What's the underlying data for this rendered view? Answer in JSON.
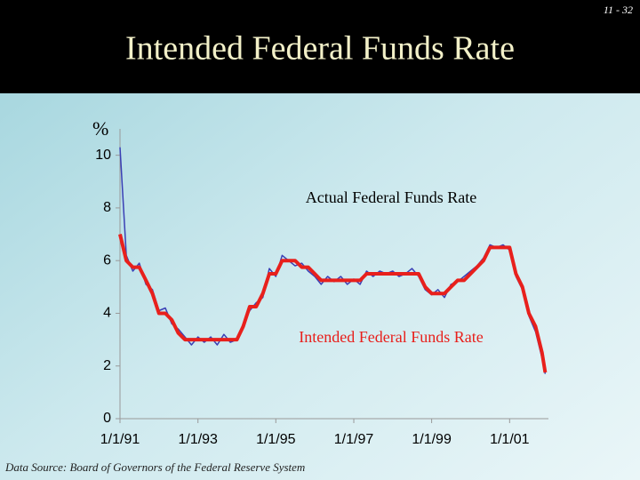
{
  "page_number": "11 - 32",
  "source": "Data Source: Board of Governors of the Federal Reserve System",
  "chart_data": {
    "type": "line",
    "title": "Intended Federal Funds Rate",
    "y_label": "%",
    "annotations": [
      "Actual Federal Funds Rate",
      "Intended Federal Funds Rate"
    ],
    "x": [
      "1991-01-01",
      "1991-03-01",
      "1991-05-01",
      "1991-07-01",
      "1991-09-01",
      "1991-11-01",
      "1992-01-01",
      "1992-03-01",
      "1992-05-01",
      "1992-07-01",
      "1992-09-01",
      "1992-11-01",
      "1993-01-01",
      "1993-03-01",
      "1993-05-01",
      "1993-07-01",
      "1993-09-01",
      "1993-11-01",
      "1994-01-01",
      "1994-03-01",
      "1994-05-01",
      "1994-07-01",
      "1994-09-01",
      "1994-11-01",
      "1995-01-01",
      "1995-03-01",
      "1995-05-01",
      "1995-07-01",
      "1995-09-01",
      "1995-11-01",
      "1996-01-01",
      "1996-03-01",
      "1996-05-01",
      "1996-07-01",
      "1996-09-01",
      "1996-11-01",
      "1997-01-01",
      "1997-03-01",
      "1997-05-01",
      "1997-07-01",
      "1997-09-01",
      "1997-11-01",
      "1998-01-01",
      "1998-03-01",
      "1998-05-01",
      "1998-07-01",
      "1998-09-01",
      "1998-11-01",
      "1999-01-01",
      "1999-03-01",
      "1999-05-01",
      "1999-07-01",
      "1999-09-01",
      "1999-11-01",
      "2000-01-01",
      "2000-03-01",
      "2000-05-01",
      "2000-07-01",
      "2000-09-01",
      "2000-11-01",
      "2001-01-01",
      "2001-03-01",
      "2001-05-01",
      "2001-07-01",
      "2001-09-01",
      "2001-11-01",
      "2001-12-01"
    ],
    "series": [
      {
        "name": "Actual Federal Funds Rate",
        "color": "#3a3fb5",
        "width": 1.5,
        "values": [
          10.3,
          6.2,
          5.6,
          5.9,
          5.1,
          4.9,
          4.1,
          4.2,
          3.6,
          3.4,
          3.1,
          2.8,
          3.1,
          2.9,
          3.1,
          2.8,
          3.2,
          2.9,
          3.0,
          3.6,
          4.1,
          4.4,
          4.6,
          5.7,
          5.4,
          6.2,
          6.0,
          5.8,
          5.9,
          5.6,
          5.4,
          5.1,
          5.4,
          5.2,
          5.4,
          5.1,
          5.3,
          5.1,
          5.6,
          5.4,
          5.6,
          5.5,
          5.6,
          5.4,
          5.5,
          5.7,
          5.4,
          4.9,
          4.7,
          4.9,
          4.6,
          5.1,
          5.2,
          5.4,
          5.6,
          5.8,
          6.1,
          6.6,
          6.5,
          6.6,
          6.4,
          5.4,
          4.9,
          3.9,
          3.3,
          2.3,
          1.7
        ]
      },
      {
        "name": "Intended Federal Funds Rate",
        "color": "#e8201c",
        "width": 4,
        "values": [
          7.0,
          6.0,
          5.75,
          5.75,
          5.25,
          4.75,
          4.0,
          4.0,
          3.75,
          3.25,
          3.0,
          3.0,
          3.0,
          3.0,
          3.0,
          3.0,
          3.0,
          3.0,
          3.0,
          3.5,
          4.25,
          4.25,
          4.75,
          5.5,
          5.5,
          6.0,
          6.0,
          6.0,
          5.75,
          5.75,
          5.5,
          5.25,
          5.25,
          5.25,
          5.25,
          5.25,
          5.25,
          5.25,
          5.5,
          5.5,
          5.5,
          5.5,
          5.5,
          5.5,
          5.5,
          5.5,
          5.5,
          5.0,
          4.75,
          4.75,
          4.75,
          5.0,
          5.25,
          5.25,
          5.5,
          5.75,
          6.0,
          6.5,
          6.5,
          6.5,
          6.5,
          5.5,
          5.0,
          4.0,
          3.5,
          2.5,
          1.75
        ]
      }
    ],
    "xlim": [
      "1991-01-01",
      "2001-12-31"
    ],
    "xticks": [
      {
        "value": "1991-01-01",
        "label": "1/1/91"
      },
      {
        "value": "1993-01-01",
        "label": "1/1/93"
      },
      {
        "value": "1995-01-01",
        "label": "1/1/95"
      },
      {
        "value": "1997-01-01",
        "label": "1/1/97"
      },
      {
        "value": "1999-01-01",
        "label": "1/1/99"
      },
      {
        "value": "2001-01-01",
        "label": "1/1/01"
      }
    ],
    "ylim": [
      0,
      11
    ],
    "yticks": [
      0,
      2,
      4,
      6,
      8,
      10
    ]
  }
}
